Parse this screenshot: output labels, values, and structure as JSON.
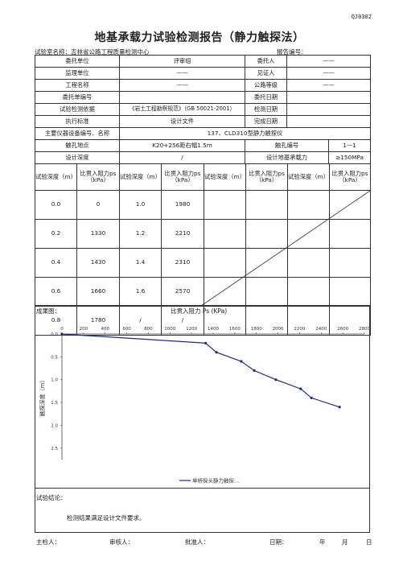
{
  "doc_code": "QJ0302",
  "title": "地基承载力试验检测报告（静力触探法）",
  "lab_name": "试验室名称：吉林省公路工程质量检测中心",
  "report_no_label": "报告编号：",
  "info_rows": [
    [
      "委托单位",
      "评审组",
      "委托人",
      "——"
    ],
    [
      "监理单位",
      "——",
      "见证人",
      "——"
    ],
    [
      "工程名称",
      "——",
      "公路等级",
      "——"
    ],
    [
      "委托单编号",
      "",
      "委托日期",
      ""
    ],
    [
      "试验检测依据",
      "《岩土工程勘察规范》（GB 50021-2001）",
      "检测日期",
      ""
    ],
    [
      "执行标准",
      "设计文件",
      "完成日期",
      ""
    ]
  ],
  "equipment": {
    "label": "主要仪器设备编号、名称",
    "value": "137、CLD310型静力触探仪"
  },
  "location_row": {
    "label": "触孔地点",
    "value": "K20+256距右幅1.5m",
    "no_label": "触孔编号",
    "no_value": "1—1"
  },
  "depth_row": {
    "label": "设计深度",
    "value": "/",
    "bearing_label": "设计地基承载力",
    "bearing_value": "≥150MPa"
  },
  "table_headers": [
    "试验深度（m）",
    "比贯入阻力ps（kPa）",
    "试验深度（m）",
    "比贯入阻力ps（kPa）",
    "试验深度（m）",
    "比贯入阻力ps（kPa）",
    "试验深度（m）",
    "比贯入阻力ps（kPa）"
  ],
  "table_rows": [
    [
      "0.0",
      "0",
      "1.0",
      "1980"
    ],
    [
      "0.2",
      "1330",
      "1.2",
      "2210"
    ],
    [
      "0.4",
      "1430",
      "1.4",
      "2310"
    ],
    [
      "0.6",
      "1660",
      "1.6",
      "2570"
    ],
    [
      "0.8",
      "1780",
      "/",
      "/"
    ]
  ],
  "results_label": "成果图：",
  "chart_data": {
    "type": "line",
    "title": "比贯入阻力 Ps (KPa)",
    "xlabel": "比贯入阻力 Ps (KPa)",
    "ylabel": "触探深度（m）",
    "x_ticks": [
      "0",
      "200",
      "400",
      "600",
      "800",
      "1000",
      "1200",
      "1400",
      "1600",
      "1800",
      "2000",
      "2200",
      "2400",
      "2600",
      "2800"
    ],
    "y_ticks": [
      "0.0",
      "0.5",
      "1.0",
      "1.5",
      "2.0",
      "2.5"
    ],
    "xlim": [
      0,
      2800
    ],
    "ylim": [
      0,
      2.75
    ],
    "series": [
      {
        "name": "单桥探头静力触探…",
        "points": [
          [
            0,
            0.0
          ],
          [
            1330,
            0.2
          ],
          [
            1430,
            0.4
          ],
          [
            1660,
            0.6
          ],
          [
            1780,
            0.8
          ],
          [
            1980,
            1.0
          ],
          [
            2210,
            1.2
          ],
          [
            2310,
            1.4
          ],
          [
            2570,
            1.6
          ]
        ]
      }
    ],
    "color": "#1f2a8c"
  },
  "conclusion_label": "试验结论：",
  "conclusion_text": "检测结果满足设计文件要求。",
  "footer": {
    "inspector": "主检人：",
    "reviewer": "审核人：",
    "approver": "批准人：",
    "date": "日期：",
    "year": "年",
    "month": "月",
    "day": "日"
  }
}
